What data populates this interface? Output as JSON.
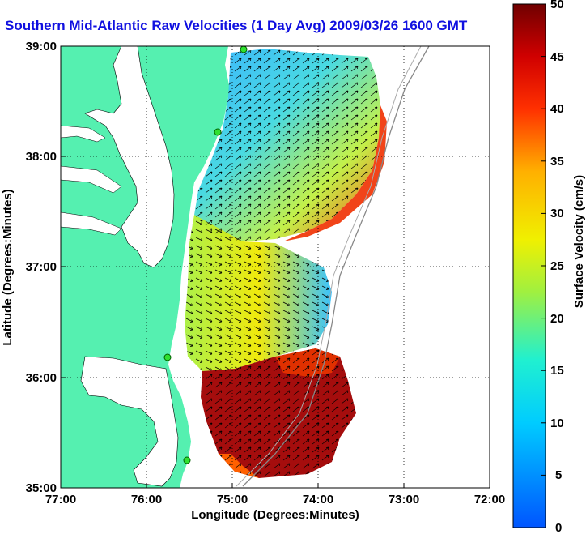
{
  "title": "Southern Mid-Atlantic Raw Velocities (1 Day Avg) 2009/03/26 1600 GMT",
  "x_axis": {
    "label": "Longitude (Degrees:Minutes)",
    "ticks": [
      "77:00",
      "76:00",
      "75:00",
      "74:00",
      "73:00",
      "72:00"
    ]
  },
  "y_axis": {
    "label": "Latitude (Degrees:Minutes)",
    "ticks": [
      "39:00",
      "38:00",
      "37:00",
      "36:00",
      "35:00"
    ]
  },
  "colorbar": {
    "label": "Surface Velocity (cm/s)",
    "ticks": [
      "50",
      "45",
      "40",
      "35",
      "30",
      "25",
      "20",
      "15",
      "10",
      "5",
      "0"
    ],
    "min": 0,
    "max": 50
  },
  "colors": {
    "land": "#55f0b0",
    "water": "#ffffff",
    "title": "#1010e0",
    "grid": "#000000"
  },
  "stations": [
    "station-north",
    "station-central",
    "station-south-1",
    "station-south-2"
  ]
}
